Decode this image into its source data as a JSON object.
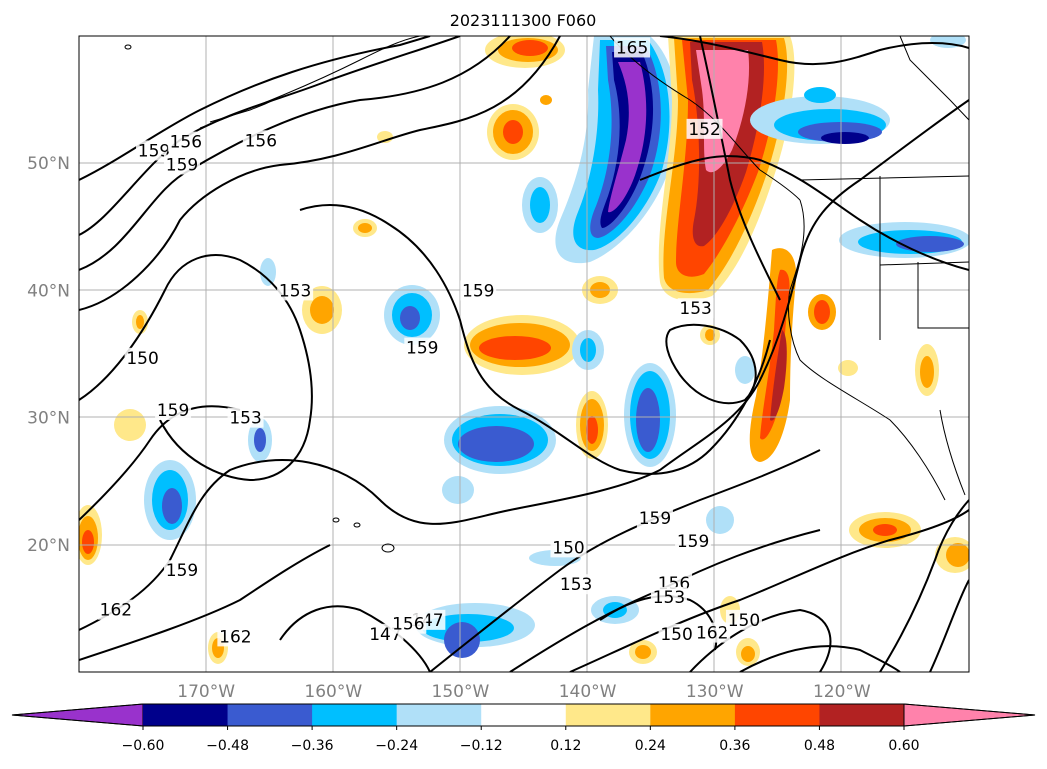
{
  "chart_data": {
    "type": "contour",
    "title": "2023111300 F060",
    "map": {
      "projection": "plate-carree",
      "lon_range": [
        -180,
        -110
      ],
      "lat_range": [
        10,
        60
      ],
      "coastlines": true,
      "borders": true,
      "grid": true
    },
    "x_ticks": [
      {
        "value": -170,
        "label": "170°W"
      },
      {
        "value": -160,
        "label": "160°W"
      },
      {
        "value": -150,
        "label": "150°W"
      },
      {
        "value": -140,
        "label": "140°W"
      },
      {
        "value": -130,
        "label": "130°W"
      },
      {
        "value": -120,
        "label": "120°W"
      }
    ],
    "y_ticks": [
      {
        "value": 50,
        "label": "50°N"
      },
      {
        "value": 40,
        "label": "40°N"
      },
      {
        "value": 30,
        "label": "30°N"
      },
      {
        "value": 20,
        "label": "20°N"
      }
    ],
    "colorbar": {
      "orientation": "horizontal",
      "extend": "both",
      "levels": [
        -0.6,
        -0.48,
        -0.36,
        -0.24,
        -0.12,
        0.12,
        0.24,
        0.36,
        0.48,
        0.6
      ],
      "tick_labels": [
        "−0.60",
        "−0.48",
        "−0.36",
        "−0.24",
        "−0.12",
        "0.12",
        "0.24",
        "0.36",
        "0.48",
        "0.60"
      ],
      "colors": [
        "#9932cc",
        "#00008b",
        "#3a5bd0",
        "#00bfff",
        "#b0e0f8",
        "#ffffff",
        "#ffe88a",
        "#ffa500",
        "#ff4500",
        "#b22222",
        "#ff82ab"
      ]
    },
    "contour_labels": [
      {
        "text": "165",
        "lon": -136.5,
        "lat": 59.1
      },
      {
        "text": "162",
        "lon": -130.2,
        "lat": 13.1
      },
      {
        "text": "159",
        "lon": -174.1,
        "lat": 51.0
      },
      {
        "text": "156",
        "lon": -171.6,
        "lat": 51.7
      },
      {
        "text": "156",
        "lon": -165.7,
        "lat": 51.8
      },
      {
        "text": "159",
        "lon": -171.9,
        "lat": 49.9
      },
      {
        "text": "153",
        "lon": -163.0,
        "lat": 40.0
      },
      {
        "text": "150",
        "lon": -175.0,
        "lat": 34.7
      },
      {
        "text": "159",
        "lon": -172.6,
        "lat": 30.6
      },
      {
        "text": "153",
        "lon": -166.9,
        "lat": 30.0
      },
      {
        "text": "150",
        "lon": -141.5,
        "lat": 19.8
      },
      {
        "text": "159",
        "lon": -153.0,
        "lat": 35.5
      },
      {
        "text": "159",
        "lon": -171.9,
        "lat": 18.0
      },
      {
        "text": "162",
        "lon": -177.1,
        "lat": 14.9
      },
      {
        "text": "162",
        "lon": -167.7,
        "lat": 12.8
      },
      {
        "text": "147",
        "lon": -152.6,
        "lat": 14.1
      },
      {
        "text": "147",
        "lon": -155.9,
        "lat": 13.0
      },
      {
        "text": "156",
        "lon": -154.1,
        "lat": 13.8
      },
      {
        "text": "156",
        "lon": -133.2,
        "lat": 17.0
      },
      {
        "text": "153",
        "lon": -140.9,
        "lat": 16.9
      },
      {
        "text": "159",
        "lon": -134.7,
        "lat": 22.1
      },
      {
        "text": "159",
        "lon": -131.7,
        "lat": 20.3
      },
      {
        "text": "153",
        "lon": -133.6,
        "lat": 15.9
      },
      {
        "text": "150",
        "lon": -133.0,
        "lat": 13.0
      },
      {
        "text": "150",
        "lon": -127.7,
        "lat": 14.1
      },
      {
        "text": "152",
        "lon": -130.8,
        "lat": 52.7
      },
      {
        "text": "153",
        "lon": -131.5,
        "lat": 38.6
      },
      {
        "text": "159",
        "lon": -148.6,
        "lat": 40.0
      }
    ]
  }
}
